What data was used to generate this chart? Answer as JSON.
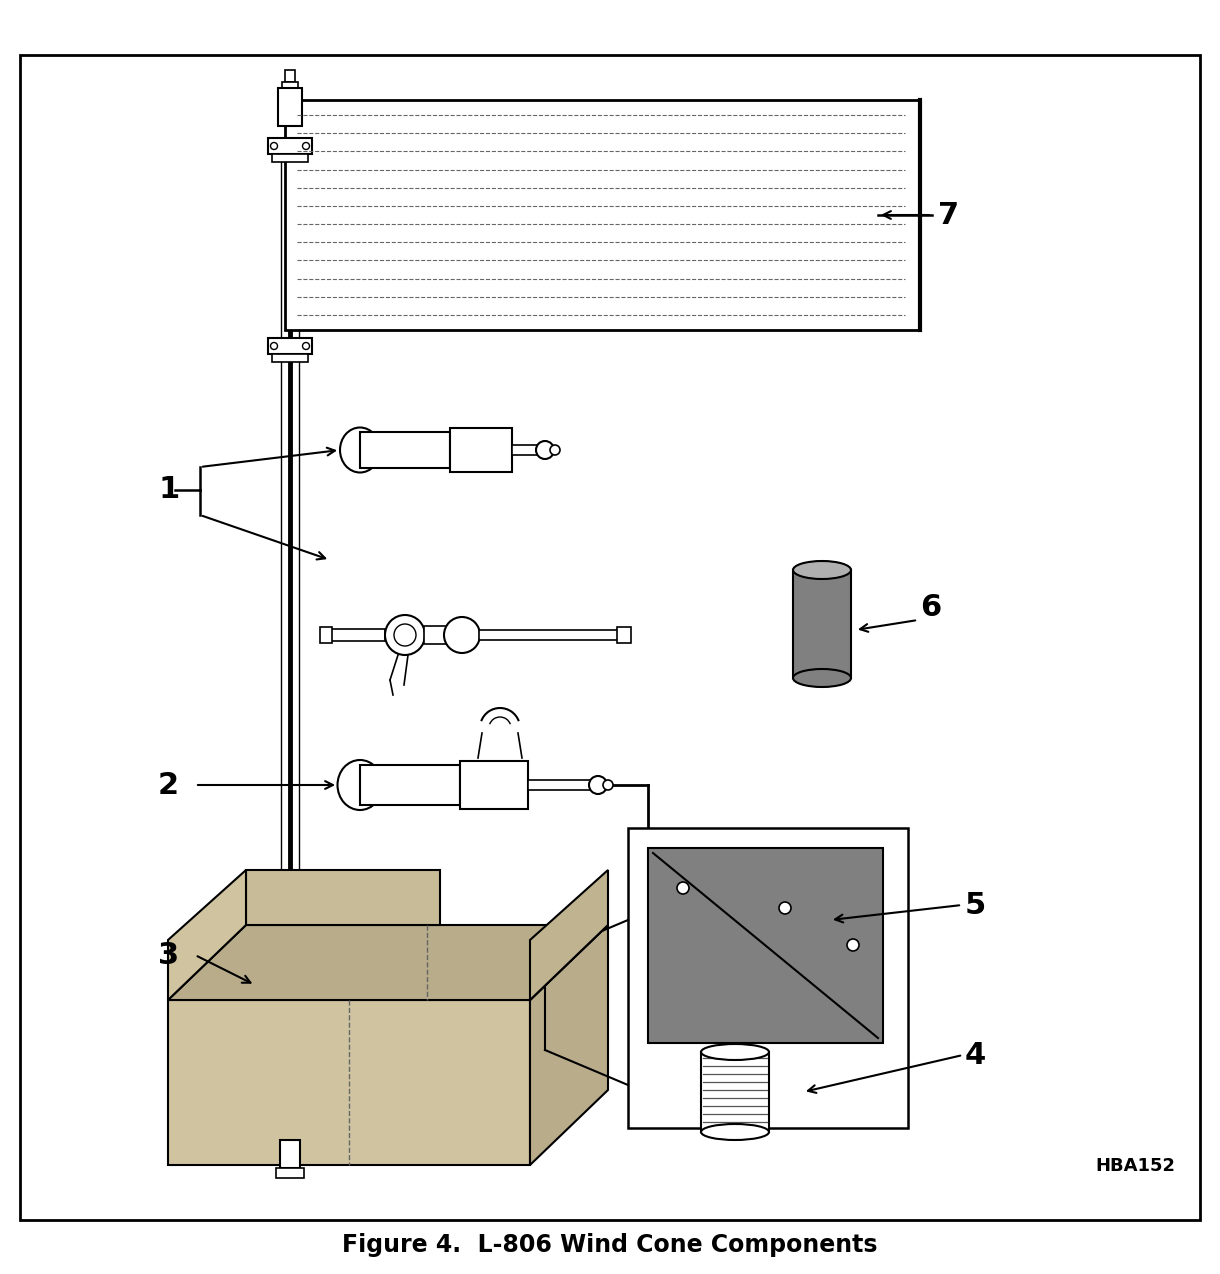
{
  "title": "Figure 4.  L-806 Wind Cone Components",
  "title_fontsize": 17,
  "label_code": "HBA152",
  "bg_color": "#ffffff",
  "border_color": "#000000",
  "fig_width": 12.2,
  "fig_height": 12.74,
  "dpi": 100
}
